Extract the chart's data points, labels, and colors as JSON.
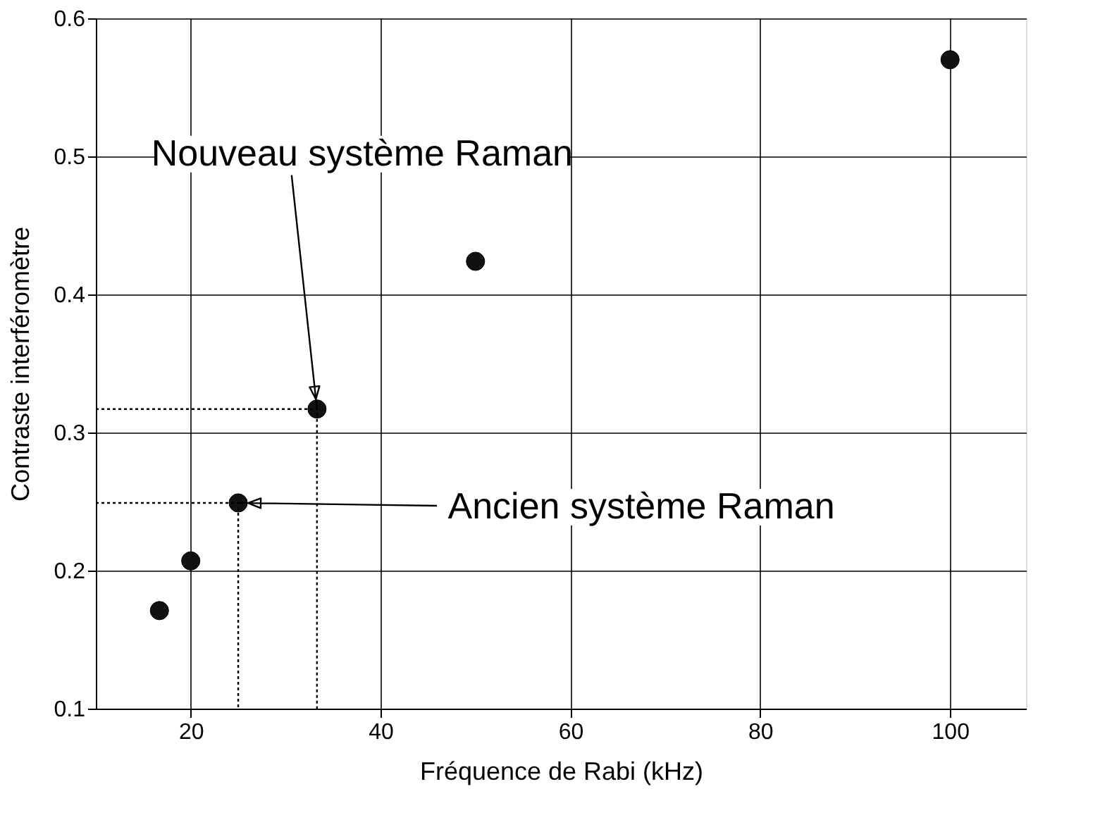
{
  "chart_data": {
    "type": "scatter",
    "xlabel": "Fréquence de Rabi (kHz)",
    "ylabel": "Contraste interféromètre",
    "xlim": [
      10,
      108
    ],
    "xticks": [
      20,
      40,
      60,
      80,
      100
    ],
    "ylim": [
      0.1,
      0.6
    ],
    "yticks": [
      0.1,
      0.2,
      0.3,
      0.4,
      0.5,
      0.6
    ],
    "grid": true,
    "marker": "circle",
    "series": [
      {
        "color": "#111111",
        "x": [
          16.7,
          20,
          25,
          33.3,
          50,
          100
        ],
        "values": [
          0.171,
          0.207,
          0.249,
          0.317,
          0.424,
          0.57
        ]
      },
      {
        "type": "line",
        "line_style": "dotted",
        "color": "#000000",
        "marker": "none",
        "x": [
          10,
          25,
          25
        ],
        "values": [
          0.249,
          0.249,
          0.1
        ]
      },
      {
        "type": "line",
        "line_style": "dotted",
        "color": "#000000",
        "marker": "none",
        "x": [
          10,
          33.3,
          33.3
        ],
        "values": [
          0.317,
          0.317,
          0.1
        ]
      }
    ],
    "annotations": [
      {
        "text": "Nouveau système Raman",
        "x": 33.3,
        "y": 0.317
      },
      {
        "text": "Ancien système Raman",
        "x": 25,
        "y": 0.249
      }
    ]
  }
}
